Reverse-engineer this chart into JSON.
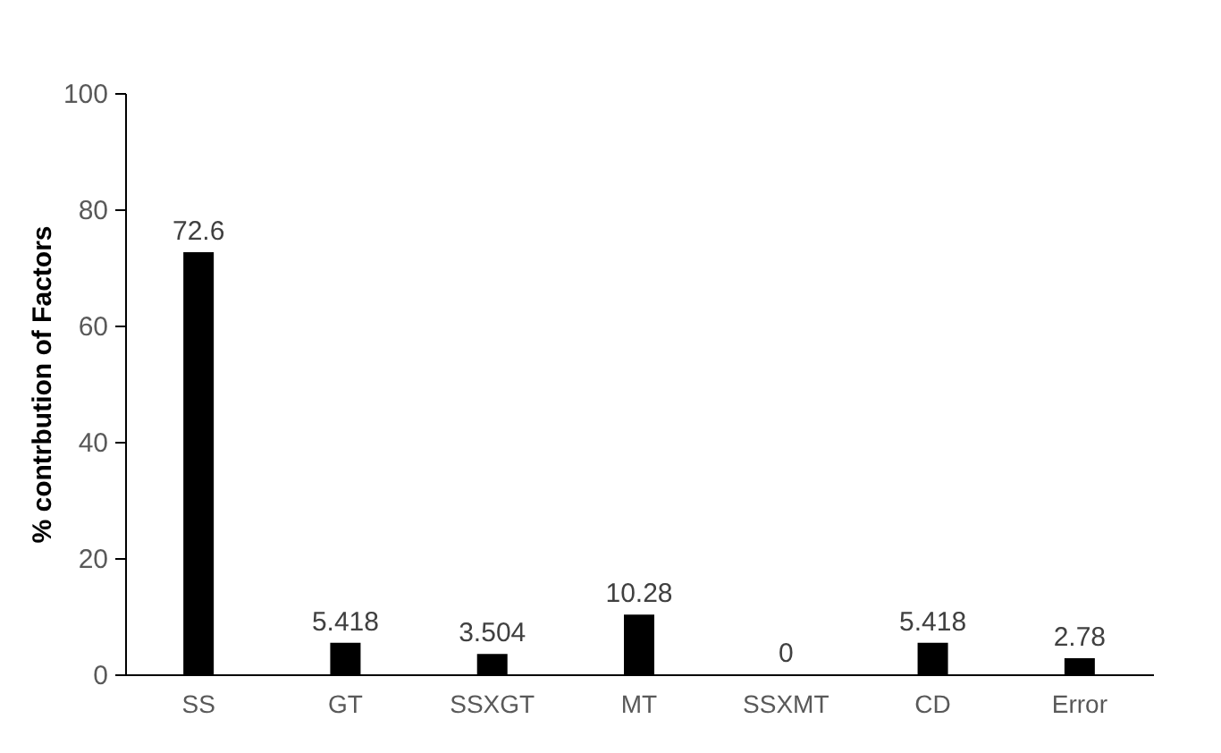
{
  "chart_data": {
    "type": "bar",
    "ylabel": "% contrbution of Factors",
    "categories": [
      "SS",
      "GT",
      "SSXGT",
      "MT",
      "SSXMT",
      "CD",
      "Error"
    ],
    "values": [
      72.6,
      5.418,
      3.504,
      10.28,
      0,
      5.418,
      2.78
    ],
    "color": "#000000",
    "ylim": [
      0,
      100
    ],
    "yticks": [
      0,
      20,
      40,
      60,
      80,
      100
    ],
    "grid": false,
    "data_labels": true
  }
}
